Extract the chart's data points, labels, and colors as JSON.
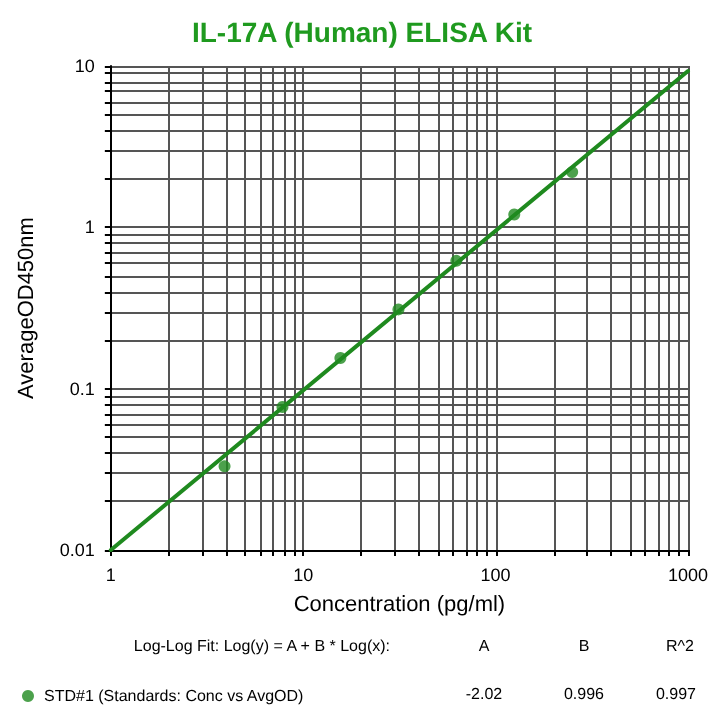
{
  "chart_data": {
    "type": "scatter",
    "title": "IL-17A (Human) ELISA Kit",
    "xlabel": "Concentration (pg/ml)",
    "ylabel": "AverageOD450nm",
    "log": "xy",
    "grid": true,
    "legend": "bottom left",
    "marker": "circle",
    "xlim": [
      1,
      1000
    ],
    "ylim": [
      0.01,
      10
    ],
    "xticks": [
      1,
      {
        "value": 2,
        "label": null
      },
      {
        "value": 3,
        "label": null
      },
      {
        "value": 4,
        "label": null
      },
      {
        "value": 5,
        "label": null
      },
      {
        "value": 6,
        "label": null
      },
      {
        "value": 7,
        "label": null
      },
      {
        "value": 8,
        "label": null
      },
      {
        "value": 9,
        "label": null
      },
      10,
      {
        "value": 20,
        "label": null
      },
      {
        "value": 30,
        "label": null
      },
      {
        "value": 40,
        "label": null
      },
      {
        "value": 50,
        "label": null
      },
      {
        "value": 60,
        "label": null
      },
      {
        "value": 70,
        "label": null
      },
      {
        "value": 80,
        "label": null
      },
      {
        "value": 90,
        "label": null
      },
      100,
      {
        "value": 200,
        "label": null
      },
      {
        "value": 300,
        "label": null
      },
      {
        "value": 400,
        "label": null
      },
      {
        "value": 500,
        "label": null
      },
      {
        "value": 600,
        "label": null
      },
      {
        "value": 700,
        "label": null
      },
      {
        "value": 800,
        "label": null
      },
      {
        "value": 900,
        "label": null
      },
      1000
    ],
    "yticks": [
      0.01,
      {
        "value": 0.02,
        "label": null
      },
      {
        "value": 0.03,
        "label": null
      },
      {
        "value": 0.04,
        "label": null
      },
      {
        "value": 0.05,
        "label": null
      },
      {
        "value": 0.06,
        "label": null
      },
      {
        "value": 0.07,
        "label": null
      },
      {
        "value": 0.08,
        "label": null
      },
      {
        "value": 0.09,
        "label": null
      },
      0.1,
      {
        "value": 0.2,
        "label": null
      },
      {
        "value": 0.3,
        "label": null
      },
      {
        "value": 0.4,
        "label": null
      },
      {
        "value": 0.5,
        "label": null
      },
      {
        "value": 0.6,
        "label": null
      },
      {
        "value": 0.7,
        "label": null
      },
      {
        "value": 0.8,
        "label": null
      },
      {
        "value": 0.9,
        "label": null
      },
      1,
      {
        "value": 2,
        "label": null
      },
      {
        "value": 3,
        "label": null
      },
      {
        "value": 4,
        "label": null
      },
      {
        "value": 5,
        "label": null
      },
      {
        "value": 6,
        "label": null
      },
      {
        "value": 7,
        "label": null
      },
      {
        "value": 8,
        "label": null
      },
      {
        "value": 9,
        "label": null
      },
      10
    ],
    "series": [
      {
        "type": "line",
        "marker": "none",
        "color": "#1f8a1f",
        "x": [
          1,
          1000
        ],
        "values": [
          0.01,
          9.3
        ]
      },
      {
        "name": "STD#1 (Standards: Conc vs AvgOD)",
        "color": "#1f8a1f",
        "x": [
          3.9,
          7.8,
          15.6,
          31.25,
          62.5,
          125,
          250
        ],
        "values": [
          0.033,
          0.077,
          0.155,
          0.31,
          0.62,
          1.2,
          2.2
        ]
      }
    ],
    "annotations": [
      "Log-Log Fit: Log(y) = A + B * Log(x):",
      "A",
      "B",
      "R^2",
      "-2.02",
      "0.996",
      "0.997"
    ]
  }
}
